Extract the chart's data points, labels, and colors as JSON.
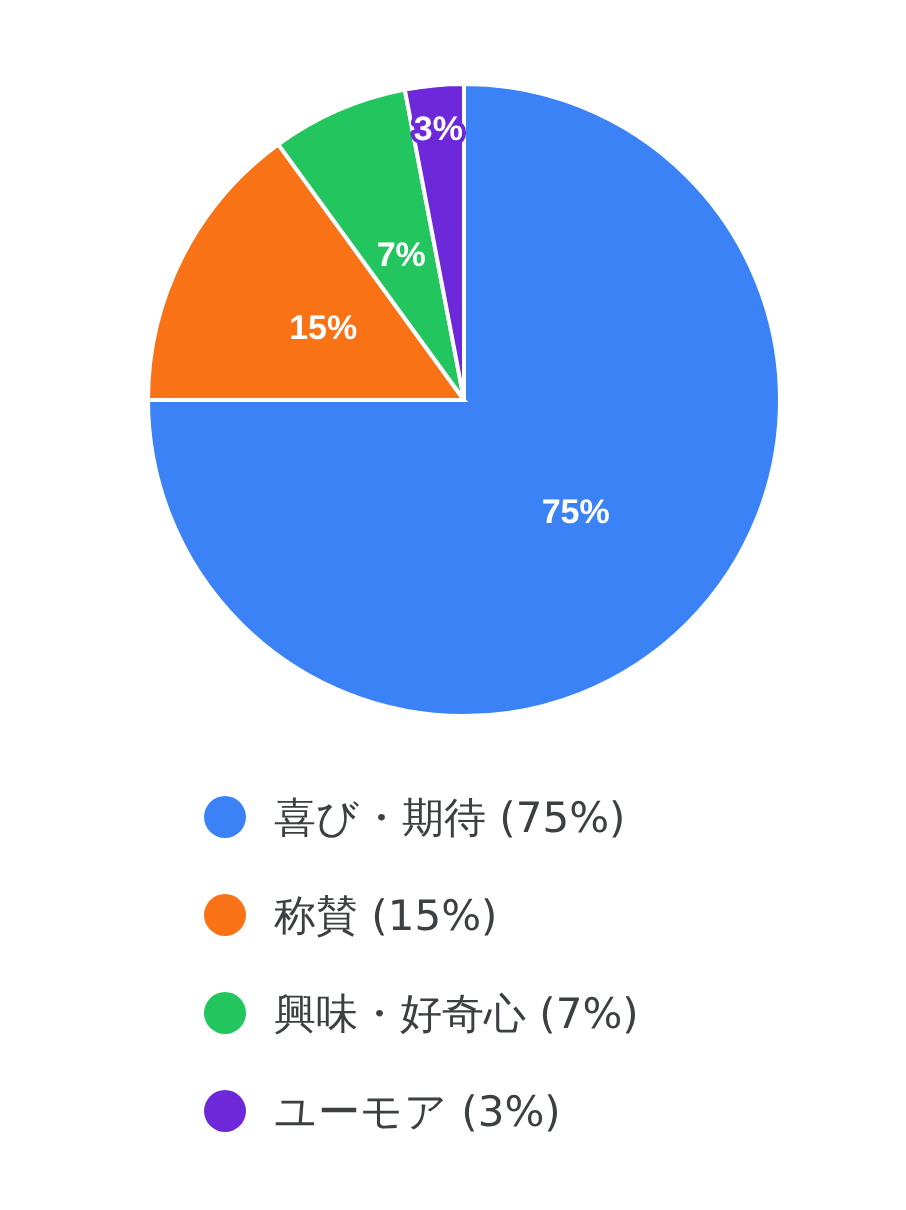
{
  "chart_data": {
    "type": "pie",
    "categories": [
      "喜び・期待 (75%)",
      "称賛 (15%)",
      "興味・好奇心 (7%)",
      "ユーモア (3%)"
    ],
    "values": [
      75,
      15,
      7,
      3
    ],
    "colors": [
      "#3b82f6",
      "#f97316",
      "#22c55e",
      "#6d28d9"
    ],
    "value_labels": [
      "75%",
      "15%",
      "7%",
      "3%"
    ],
    "legend": "bottom"
  }
}
